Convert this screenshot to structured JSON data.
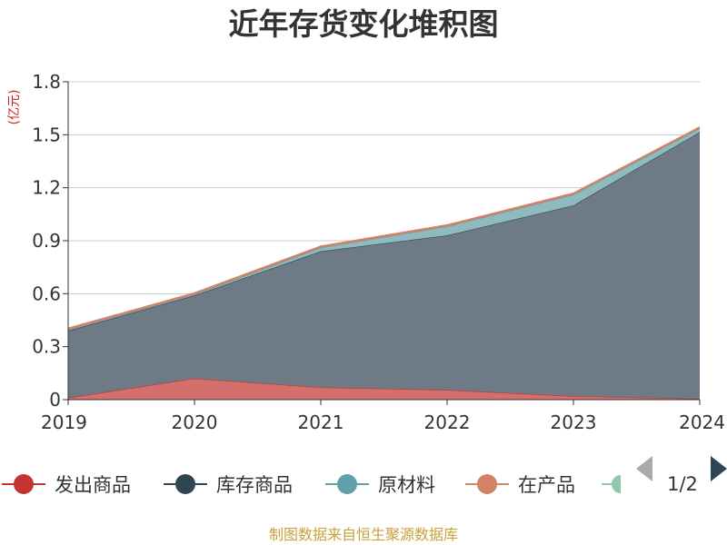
{
  "chart_data": {
    "type": "area",
    "stacked": true,
    "title": "近年存货变化堆积图",
    "unit_label": "(亿元)",
    "x": [
      "2019",
      "2020",
      "2021",
      "2022",
      "2023",
      "2024"
    ],
    "ylim": [
      0,
      1.8
    ],
    "yticks": [
      "0",
      "0.3",
      "0.6",
      "0.9",
      "1.2",
      "1.5",
      "1.8"
    ],
    "grid": true,
    "series": [
      {
        "name": "发出商品",
        "color": "#c23531",
        "fill": "#d4706c",
        "values": [
          0.01,
          0.12,
          0.07,
          0.055,
          0.02,
          0.005
        ]
      },
      {
        "name": "库存商品",
        "color": "#2f4554",
        "fill": "#6e7b86",
        "values": [
          0.38,
          0.47,
          0.77,
          0.875,
          1.08,
          1.51
        ]
      },
      {
        "name": "原材料",
        "color": "#61a0a8",
        "fill": "#8fbbbf",
        "values": [
          0.005,
          0.005,
          0.02,
          0.05,
          0.06,
          0.02
        ]
      },
      {
        "name": "在产品",
        "color": "#d48265",
        "fill": "#d48265",
        "values": [
          0.01,
          0.01,
          0.01,
          0.01,
          0.01,
          0.01
        ]
      }
    ],
    "legend_placement": "bottom",
    "legend_page": "1/2",
    "source": "制图数据来自恒生聚源数据库"
  }
}
